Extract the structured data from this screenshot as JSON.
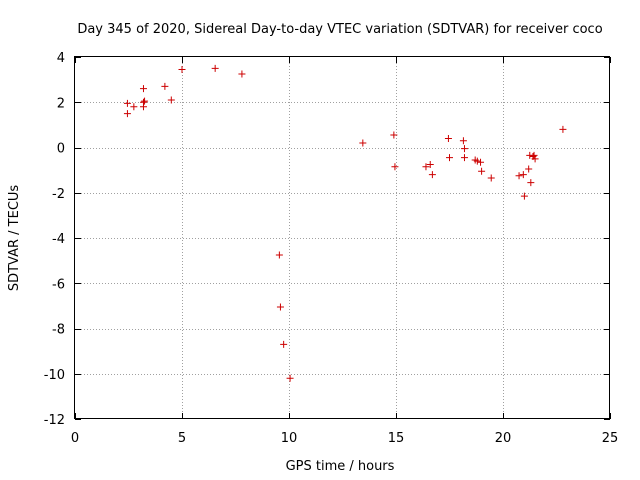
{
  "chart_data": {
    "type": "scatter",
    "title": "Day 345 of 2020, Sidereal Day-to-day VTEC variation (SDTVAR) for receiver coco",
    "xlabel": "GPS time / hours",
    "ylabel": "SDTVAR / TECUs",
    "xlim": [
      0,
      25
    ],
    "ylim": [
      -12,
      4
    ],
    "xticks": [
      0,
      5,
      10,
      15,
      20,
      25
    ],
    "yticks": [
      -12,
      -10,
      -8,
      -6,
      -4,
      -2,
      0,
      2,
      4
    ],
    "xtick_labels": [
      "0",
      "5",
      "10",
      "15",
      "20",
      "25"
    ],
    "ytick_labels": [
      "-12",
      "-10",
      "-8",
      "-6",
      "-4",
      "-2",
      "0",
      "2",
      "4"
    ],
    "grid": true,
    "marker": "+",
    "marker_color": "#cc0000",
    "series": [
      {
        "name": "SDTVAR",
        "x": [
          2.45,
          2.45,
          2.75,
          3.2,
          3.2,
          3.2,
          3.25,
          4.2,
          4.5,
          5.0,
          6.55,
          7.8,
          9.55,
          9.6,
          9.75,
          10.05,
          13.45,
          14.9,
          14.95,
          16.4,
          16.6,
          16.7,
          17.45,
          17.5,
          18.15,
          18.2,
          18.2,
          18.7,
          18.8,
          18.95,
          19.0,
          19.45,
          20.75,
          20.95,
          21.0,
          21.2,
          21.25,
          21.3,
          21.4,
          21.45,
          21.5,
          22.8
        ],
        "y": [
          1.95,
          1.5,
          1.8,
          2.6,
          2.0,
          1.8,
          2.05,
          2.7,
          2.1,
          3.45,
          3.5,
          3.25,
          -4.75,
          -7.05,
          -8.7,
          -10.2,
          0.2,
          0.55,
          -0.85,
          -0.85,
          -0.75,
          -1.2,
          0.4,
          -0.45,
          0.3,
          -0.05,
          -0.45,
          -0.55,
          -0.6,
          -0.65,
          -1.05,
          -1.35,
          -1.25,
          -1.2,
          -2.15,
          -0.95,
          -0.35,
          -1.55,
          -0.4,
          -0.35,
          -0.5,
          0.8
        ]
      }
    ]
  }
}
